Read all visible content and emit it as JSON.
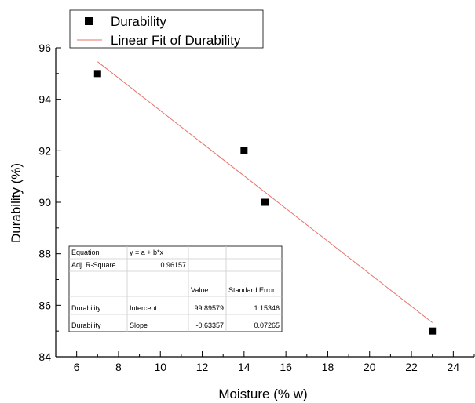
{
  "chart_data": {
    "type": "scatter",
    "xlabel": "Moisture (% w)",
    "ylabel": "Durability (%)",
    "xlim": [
      5,
      25
    ],
    "ylim": [
      84,
      96
    ],
    "xticks": [
      6,
      8,
      10,
      12,
      14,
      16,
      18,
      20,
      22,
      24
    ],
    "yticks": [
      84,
      86,
      88,
      90,
      92,
      94,
      96
    ],
    "series": [
      {
        "name": "Durability",
        "x": [
          7,
          14,
          15,
          23
        ],
        "y": [
          95,
          92,
          90,
          85
        ],
        "marker": "square",
        "color": "#000000"
      }
    ],
    "fit_line": {
      "name": "Linear Fit of Durability",
      "intercept": 99.89579,
      "slope": -0.63357,
      "x_range": [
        7,
        23
      ],
      "color": "#e8736b"
    },
    "legend_position": "top-left",
    "grid": false,
    "annotation_table": {
      "rows": [
        [
          "Equation",
          "y = a + b*x",
          "",
          ""
        ],
        [
          "Adj. R-Square",
          "0.96157",
          "",
          ""
        ],
        [
          "",
          "",
          "Value",
          "Standard Error"
        ],
        [
          "Durability",
          "Intercept",
          "99.89579",
          "1.15346"
        ],
        [
          "Durability",
          "Slope",
          "-0.63357",
          "0.07265"
        ]
      ]
    }
  }
}
